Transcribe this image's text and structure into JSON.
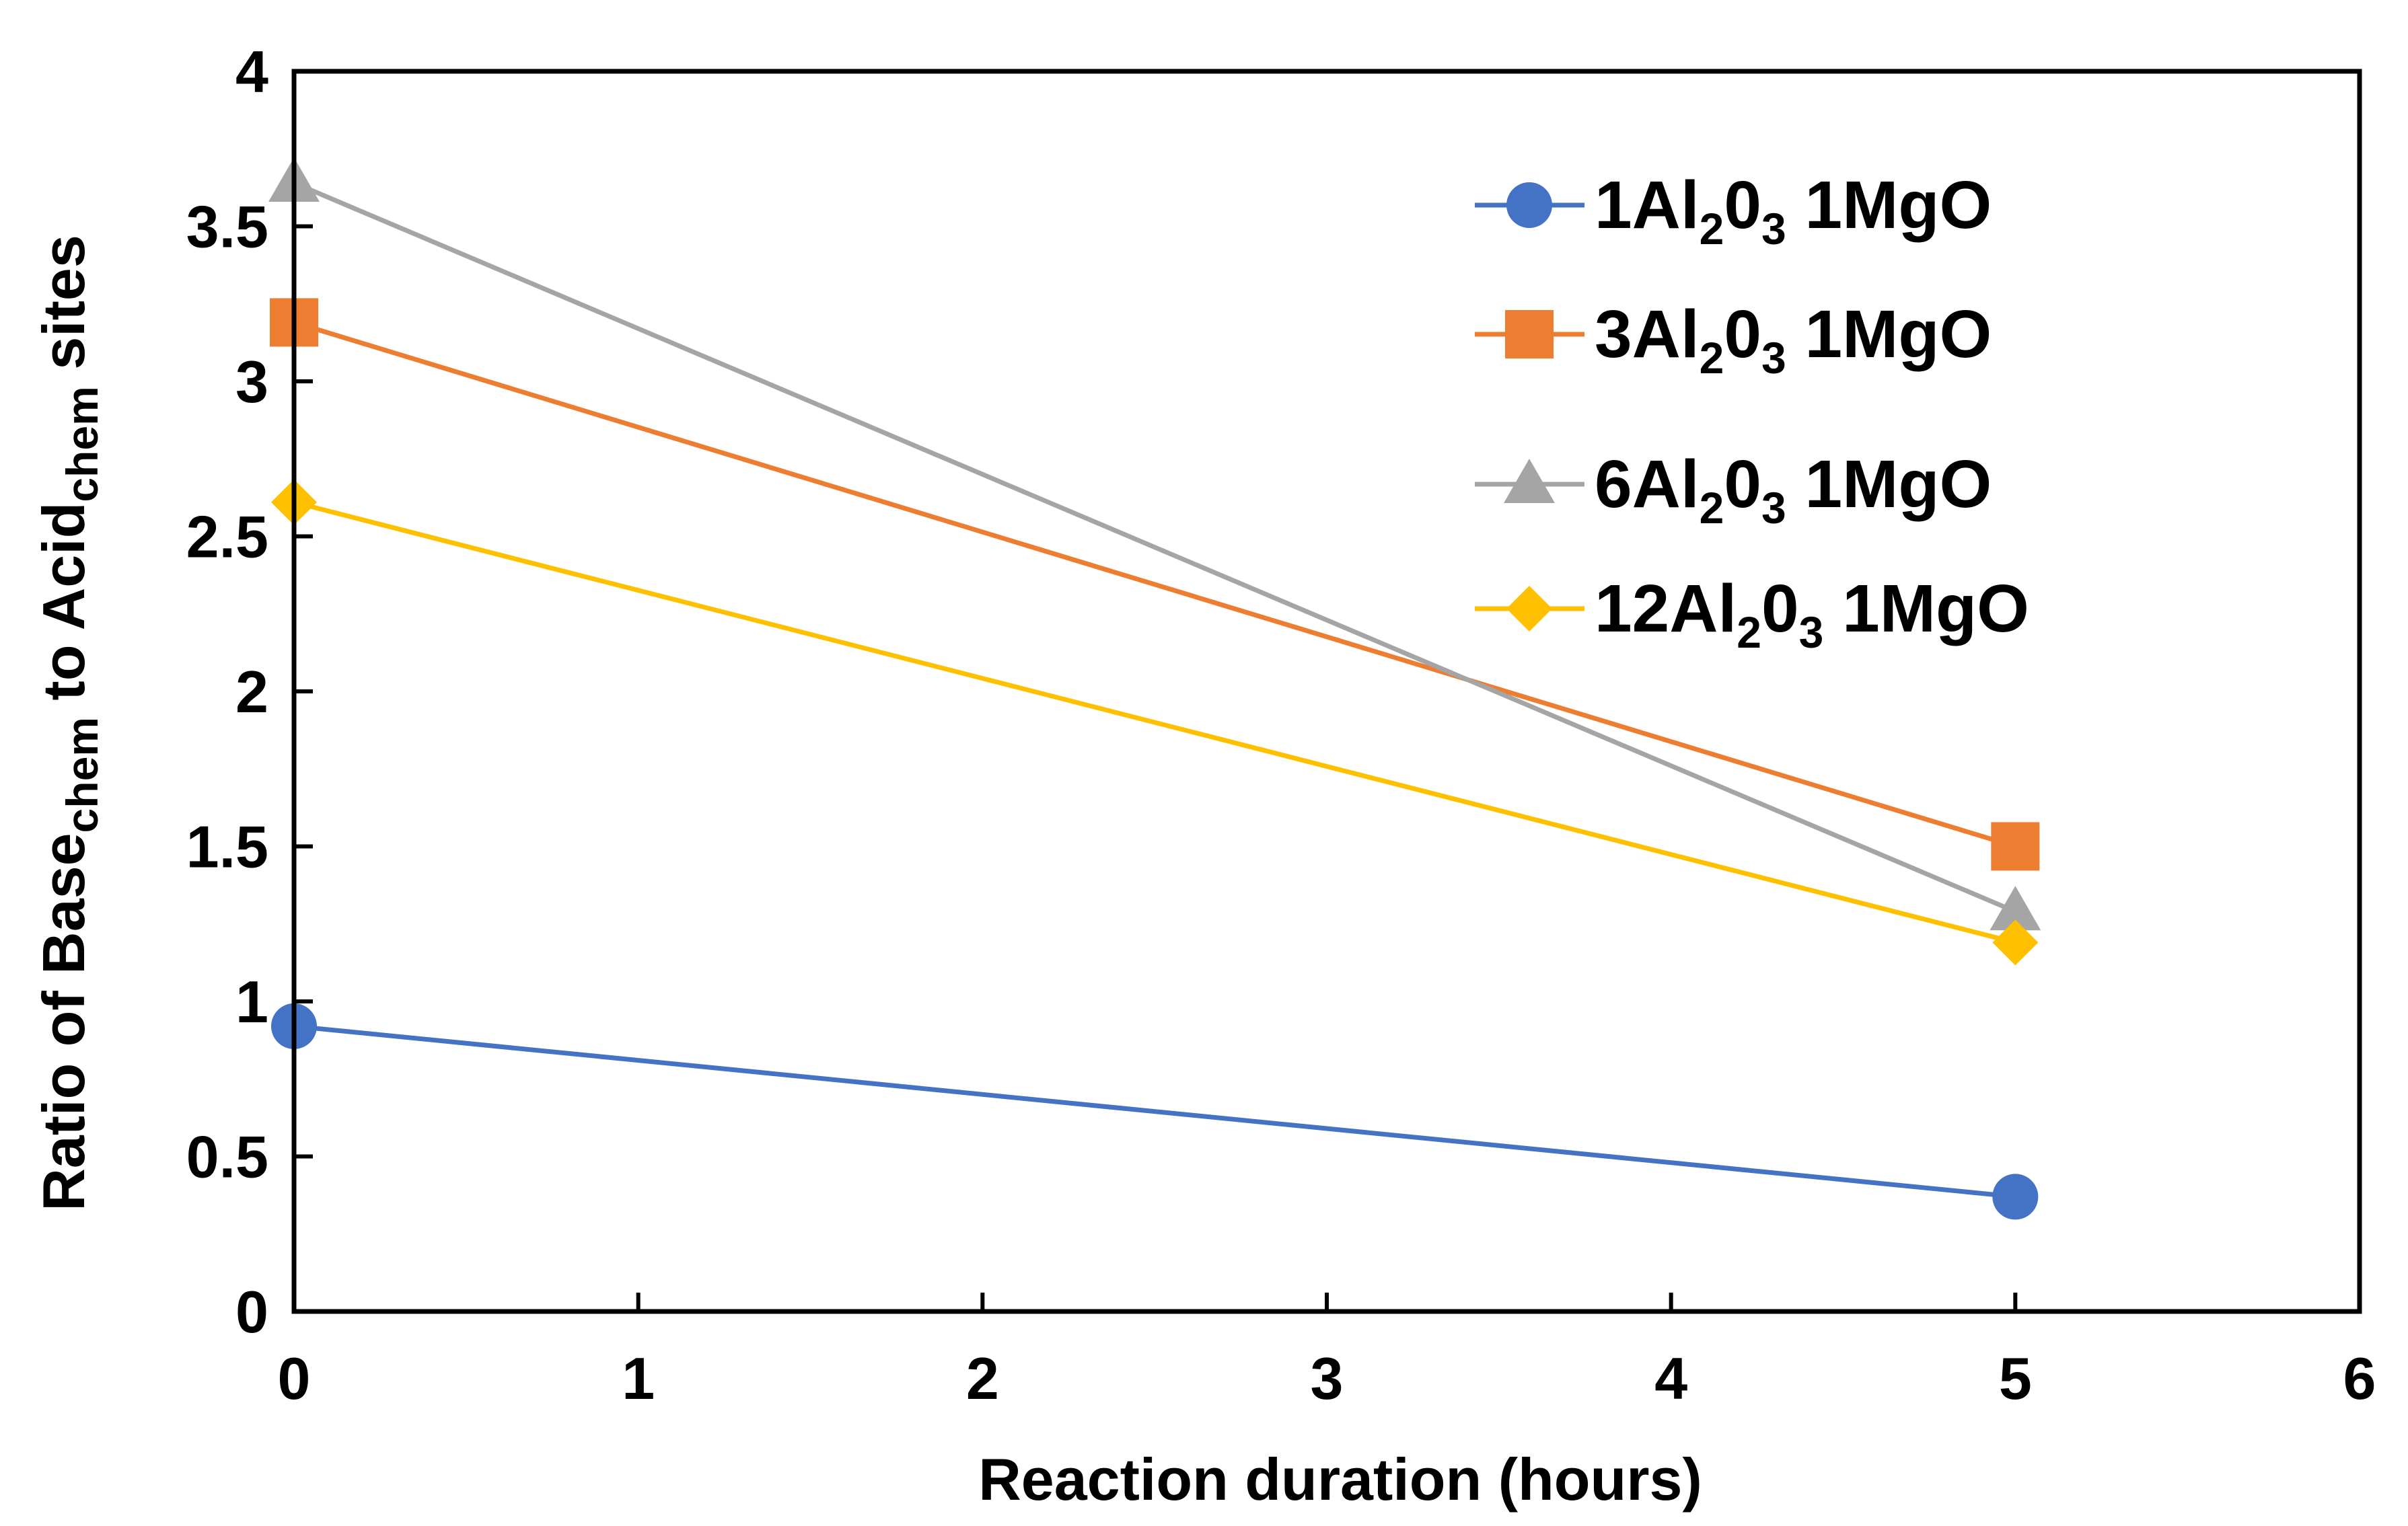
{
  "chart_data": {
    "type": "line",
    "title": "",
    "xlabel": "Reaction duration (hours)",
    "ylabel": {
      "parts": [
        {
          "text": "Ratio of Base",
          "sub": false
        },
        {
          "text": "chem",
          "sub": true
        },
        {
          "text": " to Acid",
          "sub": false
        },
        {
          "text": "chem",
          "sub": true
        },
        {
          "text": " sites",
          "sub": false
        }
      ]
    },
    "xlim": [
      0,
      6
    ],
    "ylim": [
      0,
      4
    ],
    "xticks": [
      0,
      1,
      2,
      3,
      4,
      5,
      6
    ],
    "yticks": [
      0,
      0.5,
      1,
      1.5,
      2,
      2.5,
      3,
      3.5,
      4
    ],
    "xtick_labels": [
      "0",
      "1",
      "2",
      "3",
      "4",
      "5",
      "6"
    ],
    "ytick_labels": [
      "0",
      "0.5",
      "1",
      "1.5",
      "2",
      "2.5",
      "3",
      "3.5",
      "4"
    ],
    "grid": false,
    "legend_position": "top-right",
    "series": [
      {
        "name": "1Al2O3 1MgO",
        "label_parts": [
          {
            "text": "1Al",
            "sub": false
          },
          {
            "text": "2",
            "sub": true
          },
          {
            "text": "0",
            "sub": false
          },
          {
            "text": "3",
            "sub": true
          },
          {
            "text": " 1MgO",
            "sub": false
          }
        ],
        "marker": "circle",
        "color": "#4472C4",
        "x": [
          0,
          5
        ],
        "y": [
          0.92,
          0.37
        ]
      },
      {
        "name": "3Al2O3 1MgO",
        "label_parts": [
          {
            "text": "3Al",
            "sub": false
          },
          {
            "text": "2",
            "sub": true
          },
          {
            "text": "0",
            "sub": false
          },
          {
            "text": "3",
            "sub": true
          },
          {
            "text": " 1MgO",
            "sub": false
          }
        ],
        "marker": "square",
        "color": "#ED7D31",
        "x": [
          0,
          5
        ],
        "y": [
          3.19,
          1.5
        ]
      },
      {
        "name": "6Al2O3 1MgO",
        "label_parts": [
          {
            "text": "6Al",
            "sub": false
          },
          {
            "text": "2",
            "sub": true
          },
          {
            "text": "0",
            "sub": false
          },
          {
            "text": "3",
            "sub": true
          },
          {
            "text": " 1MgO",
            "sub": false
          }
        ],
        "marker": "triangle",
        "color": "#A5A5A5",
        "x": [
          0,
          5
        ],
        "y": [
          3.64,
          1.29
        ]
      },
      {
        "name": "12Al2O3 1MgO",
        "label_parts": [
          {
            "text": "12Al",
            "sub": false
          },
          {
            "text": "2",
            "sub": true
          },
          {
            "text": "0",
            "sub": false
          },
          {
            "text": "3",
            "sub": true
          },
          {
            "text": " 1MgO",
            "sub": false
          }
        ],
        "marker": "diamond",
        "color": "#FFC000",
        "x": [
          0,
          5
        ],
        "y": [
          2.61,
          1.19
        ]
      }
    ]
  }
}
